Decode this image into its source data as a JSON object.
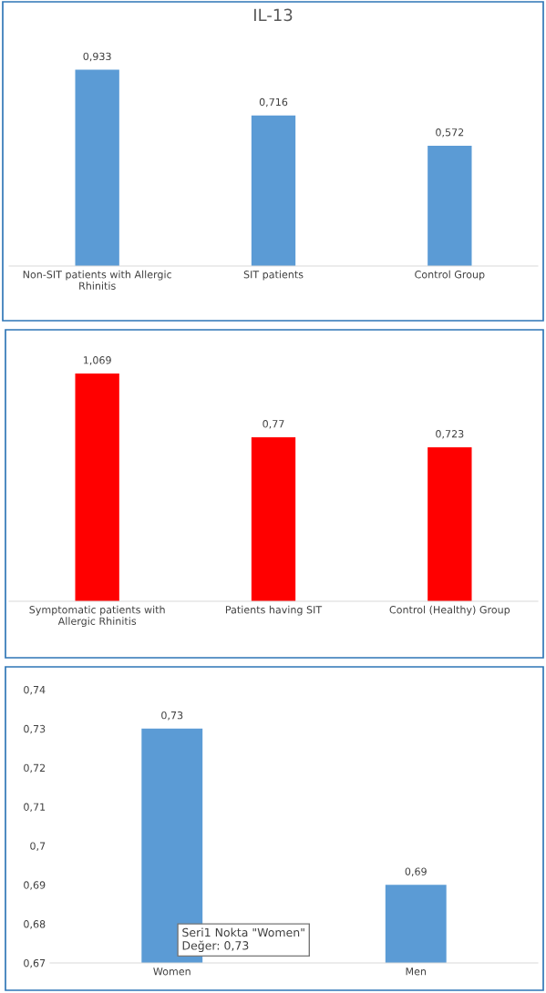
{
  "chart_data": [
    {
      "type": "bar",
      "title": "IL-13",
      "categories": [
        "Non-SIT patients with Allergic\nRhinitis",
        "SIT patients",
        "Control Group"
      ],
      "values": [
        0.933,
        0.716,
        0.572
      ],
      "color": "#5b9bd5",
      "value_labels": [
        "0,933",
        "0,716",
        "0,572"
      ]
    },
    {
      "type": "bar",
      "categories": [
        "Symptomatic patients with\nAllergic Rhinitis",
        "Patients having SIT",
        "Control (Healthy) Group"
      ],
      "values": [
        1.069,
        0.77,
        0.723
      ],
      "color": "#ff0000",
      "value_labels": [
        "1,069",
        "0,77",
        "0,723"
      ]
    },
    {
      "type": "bar",
      "categories": [
        "Women",
        "Men"
      ],
      "values": [
        0.73,
        0.69
      ],
      "color": "#5b9bd5",
      "value_labels": [
        "0,73",
        "0,69"
      ],
      "ylim": [
        0.67,
        0.74
      ],
      "yticks": [
        {
          "value": 0.67,
          "label": "0,67"
        },
        {
          "value": 0.68,
          "label": "0,68"
        },
        {
          "value": 0.69,
          "label": "0,69"
        },
        {
          "value": 0.7,
          "label": "0,7"
        },
        {
          "value": 0.71,
          "label": "0,71"
        },
        {
          "value": 0.72,
          "label": "0,72"
        },
        {
          "value": 0.73,
          "label": "0,73"
        },
        {
          "value": 0.74,
          "label": "0,74"
        }
      ],
      "annotations": [
        "Seri1 Nokta \"Women\"\nDeğer: 0,73"
      ]
    }
  ]
}
